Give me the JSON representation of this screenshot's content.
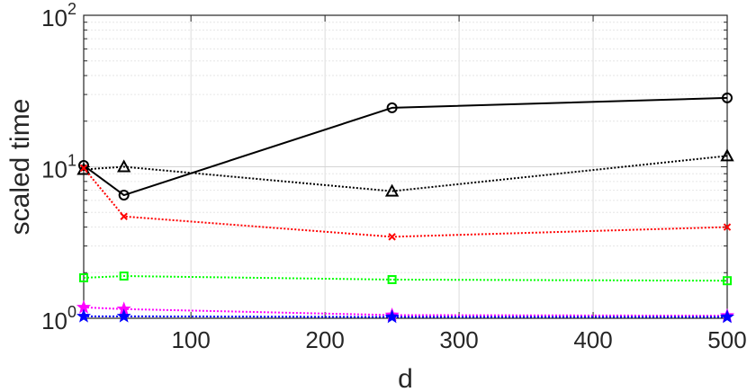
{
  "chart_data": {
    "type": "line",
    "title": "",
    "xlabel": "d",
    "ylabel": "scaled time",
    "xlim": [
      20,
      500
    ],
    "ylim": [
      1,
      100
    ],
    "yscale": "log",
    "grid": true,
    "x": [
      20,
      50,
      250,
      500
    ],
    "x_ticks": [
      100,
      200,
      300,
      400,
      500
    ],
    "x_tick_labels": [
      "100",
      "200",
      "300",
      "400",
      "500"
    ],
    "y_ticks": [
      1,
      10,
      100
    ],
    "y_tick_labels": [
      {
        "base": "10",
        "exp": "0"
      },
      {
        "base": "10",
        "exp": "1"
      },
      {
        "base": "10",
        "exp": "2"
      }
    ],
    "series": [
      {
        "color": "#000000",
        "dash": "solid",
        "marker": "circle",
        "values": [
          10.2,
          6.5,
          24.5,
          28.5
        ]
      },
      {
        "color": "#000000",
        "dash": "dotted",
        "marker": "triangle",
        "values": [
          9.6,
          10.0,
          6.9,
          11.8
        ]
      },
      {
        "color": "#ff0000",
        "dash": "dotted",
        "marker": "x",
        "values": [
          9.8,
          4.7,
          3.45,
          4.0
        ]
      },
      {
        "color": "#00ff00",
        "dash": "dotted",
        "marker": "square",
        "values": [
          1.85,
          1.9,
          1.8,
          1.77
        ]
      },
      {
        "color": "#ff00ff",
        "dash": "dotted",
        "marker": "star",
        "values": [
          1.18,
          1.15,
          1.05,
          1.04
        ]
      },
      {
        "color": "#0000ff",
        "dash": "dotted",
        "marker": "star",
        "values": [
          1.03,
          1.03,
          1.02,
          1.02
        ]
      }
    ]
  }
}
